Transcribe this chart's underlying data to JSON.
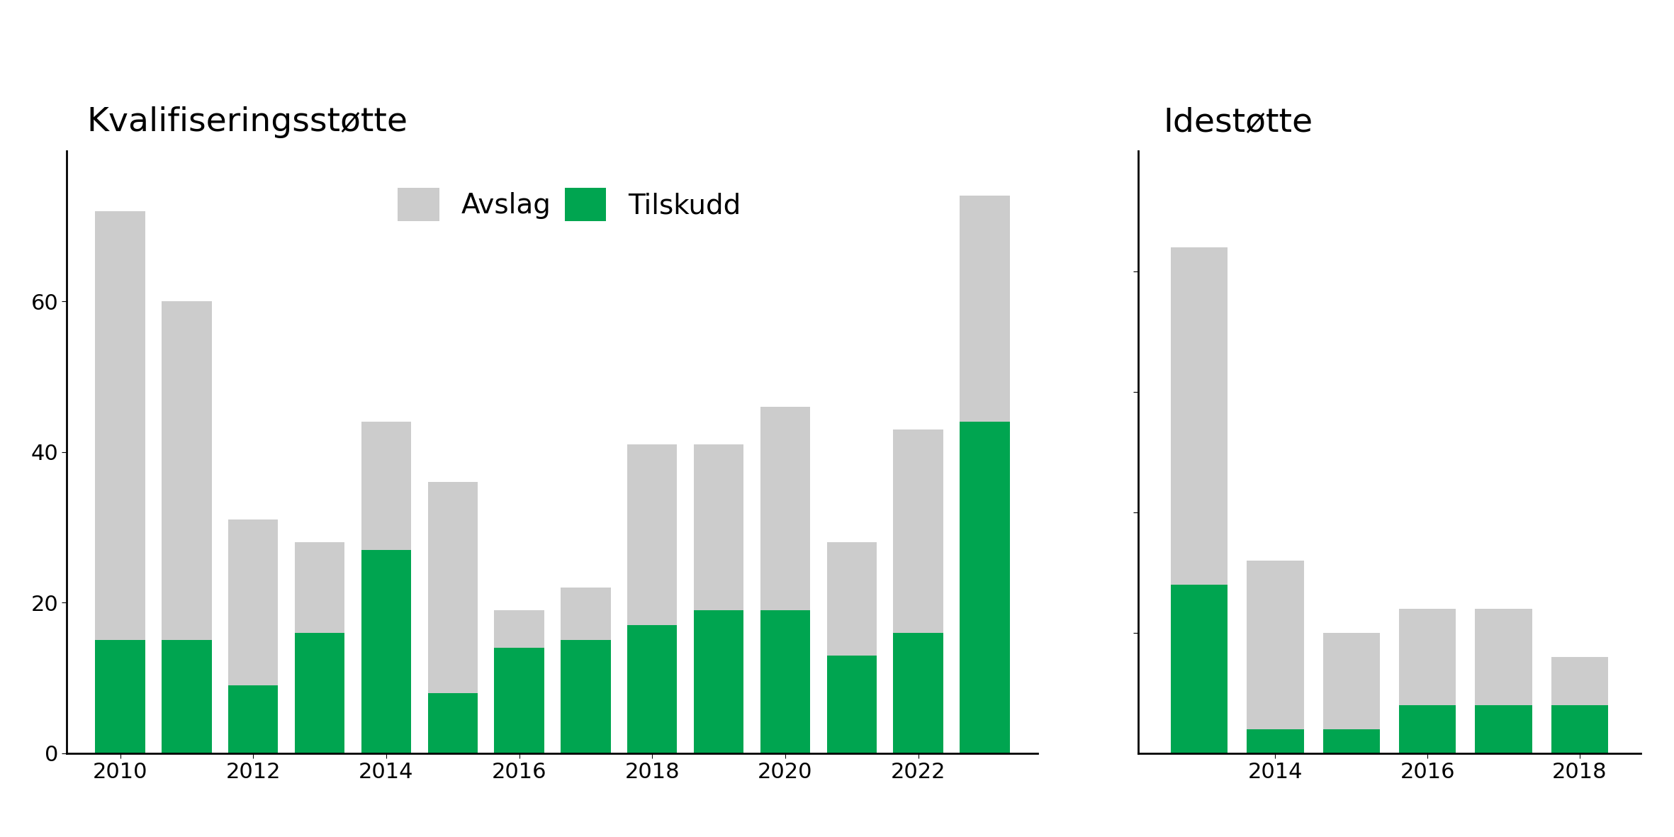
{
  "left_title": "Kvalifiseringsstøtte",
  "right_title": "Idestøtte",
  "legend_avslag": "Avslag",
  "legend_tilskudd": "Tilskudd",
  "color_avslag": "#cccccc",
  "color_tilskudd": "#00a550",
  "left_years": [
    2010,
    2011,
    2012,
    2013,
    2014,
    2015,
    2016,
    2017,
    2018,
    2019,
    2020,
    2021,
    2022,
    2023
  ],
  "left_total": [
    72,
    60,
    31,
    28,
    44,
    36,
    19,
    22,
    41,
    41,
    46,
    28,
    43,
    74
  ],
  "left_tilskudd": [
    15,
    15,
    9,
    16,
    27,
    8,
    14,
    15,
    17,
    19,
    19,
    13,
    16,
    44
  ],
  "right_years": [
    2013,
    2014,
    2015,
    2016,
    2017,
    2018
  ],
  "right_total": [
    21,
    8,
    5,
    6,
    6,
    4
  ],
  "right_tilskudd": [
    7,
    1,
    1,
    2,
    2,
    2
  ],
  "left_ylim": [
    0,
    80
  ],
  "left_yticks": [
    0,
    20,
    40,
    60
  ],
  "right_yticks": [
    5,
    10,
    15,
    20
  ],
  "background_color": "#ffffff",
  "title_fontsize": 34,
  "tick_fontsize": 22,
  "legend_fontsize": 28,
  "bar_width": 0.75
}
